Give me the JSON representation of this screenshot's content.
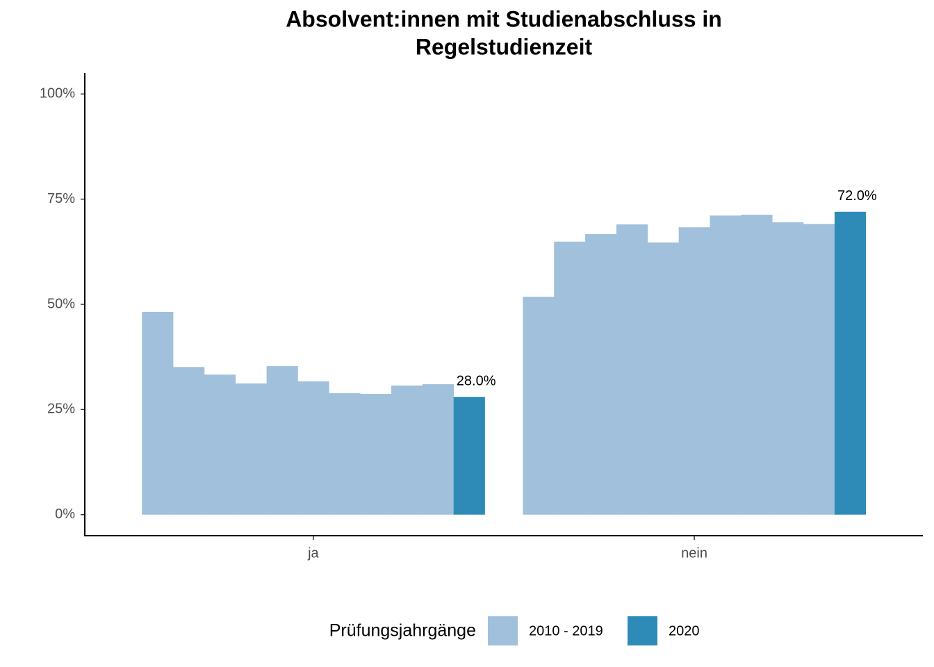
{
  "chart_data": {
    "type": "bar",
    "title": [
      "Absolvent:innen mit Studienabschluss in",
      "Regelstudienzeit"
    ],
    "categories": [
      "ja",
      "nein"
    ],
    "legend_title": "Prüfungsjahrgänge",
    "legend_position": "bottom",
    "series": [
      {
        "name": "2010 - 2019",
        "color": "#a0c0dc",
        "values": [
          [
            48.2,
            35.1,
            33.3,
            31.2,
            35.3,
            31.7,
            28.9,
            28.7,
            30.7,
            31.0
          ],
          [
            51.8,
            64.9,
            66.7,
            69.0,
            64.7,
            68.3,
            71.1,
            71.3,
            69.5,
            69.1
          ]
        ]
      },
      {
        "name": "2020",
        "color": "#2e8bb7",
        "values": [
          28.0,
          72.0
        ],
        "value_labels": [
          "28.0%",
          "72.0%"
        ]
      }
    ],
    "ylim": [
      -5,
      105
    ],
    "yticks": [
      {
        "value": 0,
        "label": "0%"
      },
      {
        "value": 25,
        "label": "25%"
      },
      {
        "value": 50,
        "label": "50%"
      },
      {
        "value": 75,
        "label": "75%"
      },
      {
        "value": 100,
        "label": "100%"
      }
    ],
    "grid": false
  }
}
